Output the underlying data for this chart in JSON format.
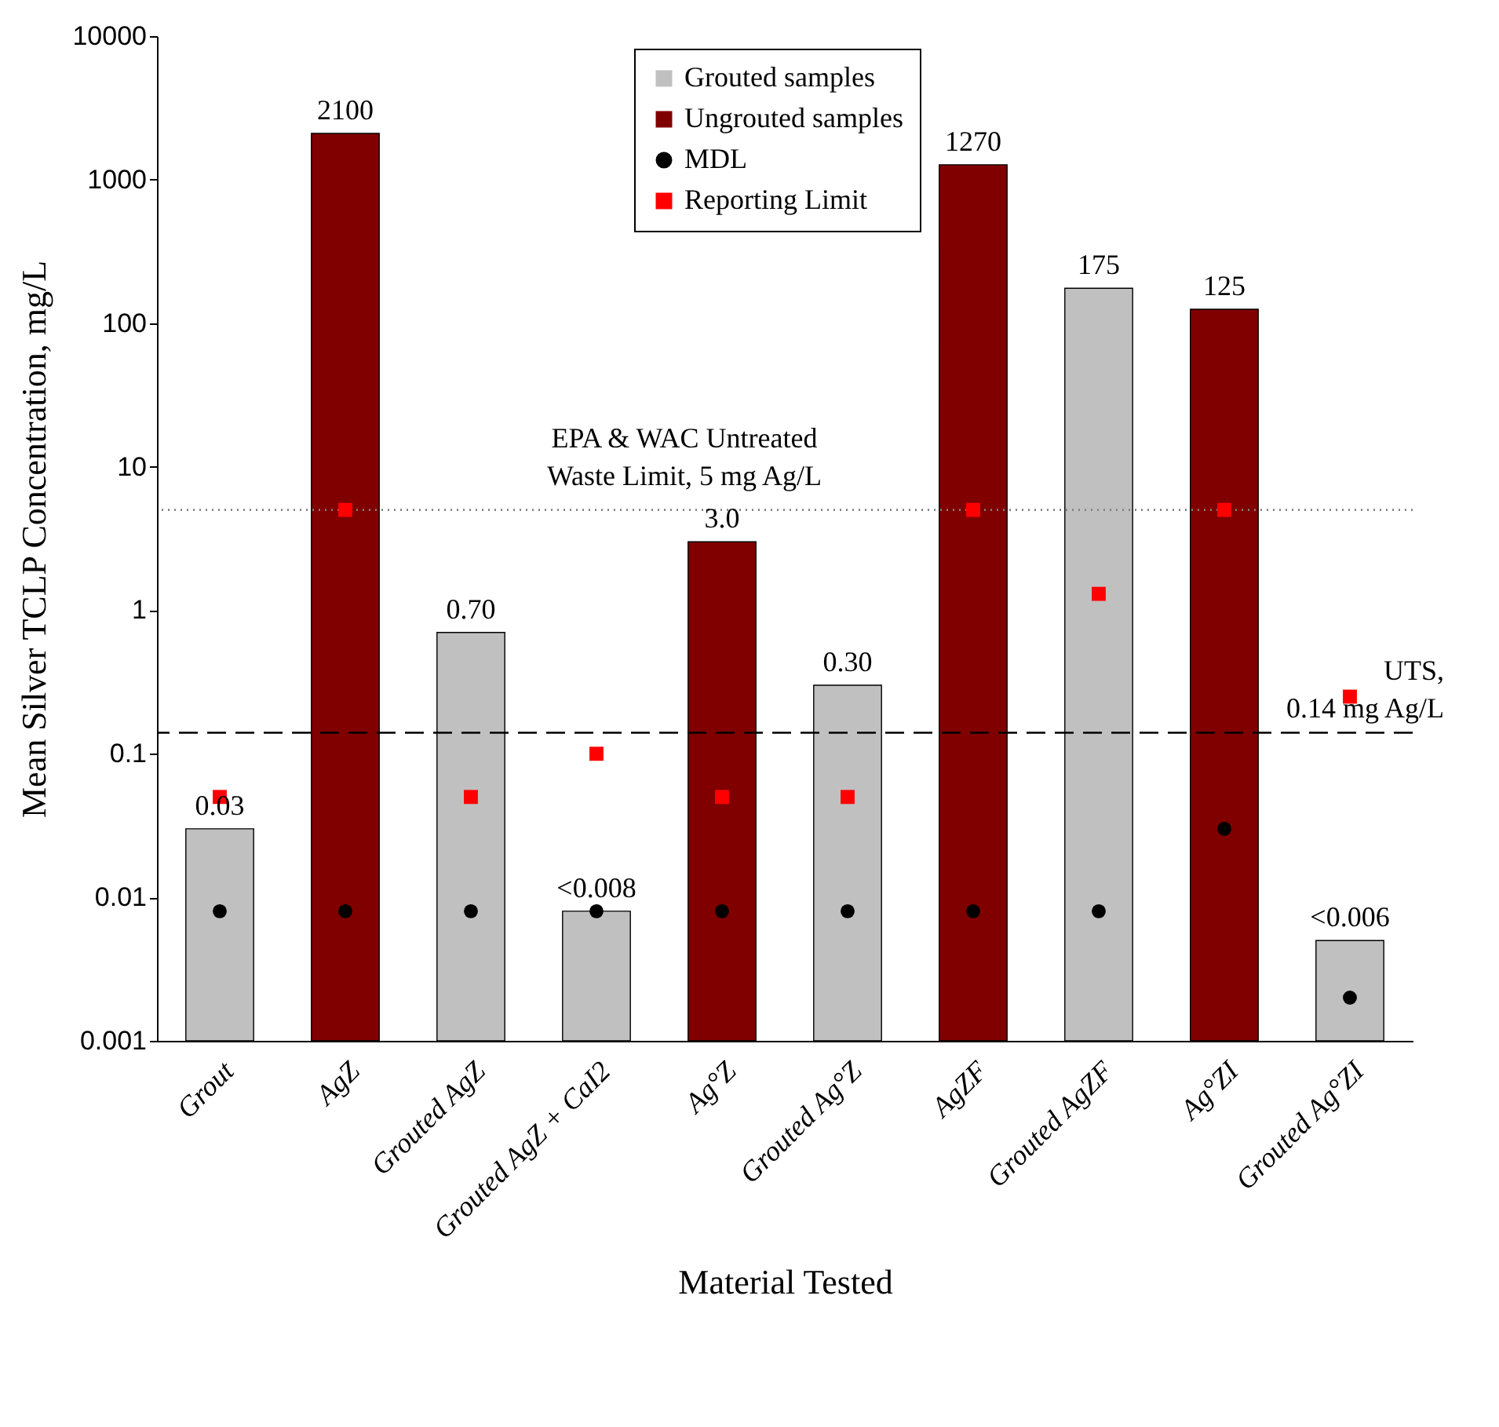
{
  "chart_data": {
    "type": "bar",
    "categories": [
      "Grout",
      "AgZ",
      "Grouted AgZ",
      "Grouted AgZ + CaI2",
      "Ag°Z",
      "Grouted Ag°Z",
      "AgZF",
      "Grouted AgZF",
      "Ag°ZI",
      "Grouted Ag°ZI"
    ],
    "xlabel": "Material Tested",
    "ylabel": "Mean Silver TCLP Concentration, mg/L",
    "log": true,
    "ylim": [
      0.001,
      10000
    ],
    "yticks": [
      0.001,
      0.01,
      0.1,
      1,
      10,
      100,
      1000,
      10000
    ],
    "legend": "top",
    "series": [
      {
        "name": "Grouted samples",
        "color": "#c0c0c0",
        "values": [
          0.03,
          null,
          0.7,
          0.008,
          null,
          0.3,
          null,
          175,
          null,
          0.005
        ],
        "value_labels": [
          "0.03",
          null,
          "0.70",
          "<0.008",
          null,
          "0.30",
          null,
          "175",
          null,
          "<0.006"
        ]
      },
      {
        "name": "Ungrouted samples",
        "color": "#800000",
        "values": [
          null,
          2100,
          null,
          null,
          3.0,
          null,
          1270,
          null,
          125,
          null
        ],
        "value_labels": [
          null,
          "2100",
          null,
          null,
          "3.0",
          null,
          "1270",
          null,
          "125",
          null
        ]
      },
      {
        "name": "MDL",
        "type": "scatter",
        "color": "#000000",
        "marker": "circle",
        "values": [
          0.008,
          0.008,
          0.008,
          0.008,
          0.008,
          0.008,
          0.008,
          0.008,
          0.03,
          0.002
        ]
      },
      {
        "name": "Reporting Limit",
        "type": "scatter",
        "color": "#ff0000",
        "marker": "square",
        "values": [
          0.05,
          5,
          0.05,
          0.1,
          0.05,
          0.05,
          5,
          1.3,
          5,
          0.25
        ]
      }
    ],
    "ref_lines": [
      {
        "axis": "y",
        "value": 5,
        "label": "EPA & WAC Untreated\nWaste Limit, 5 mg Ag/L",
        "line_style": "dotted",
        "color": "#808080"
      },
      {
        "axis": "y",
        "value": 0.14,
        "label": "UTS,\n0.14 mg Ag/L",
        "line_style": "dashed",
        "color": "#000000"
      }
    ]
  }
}
